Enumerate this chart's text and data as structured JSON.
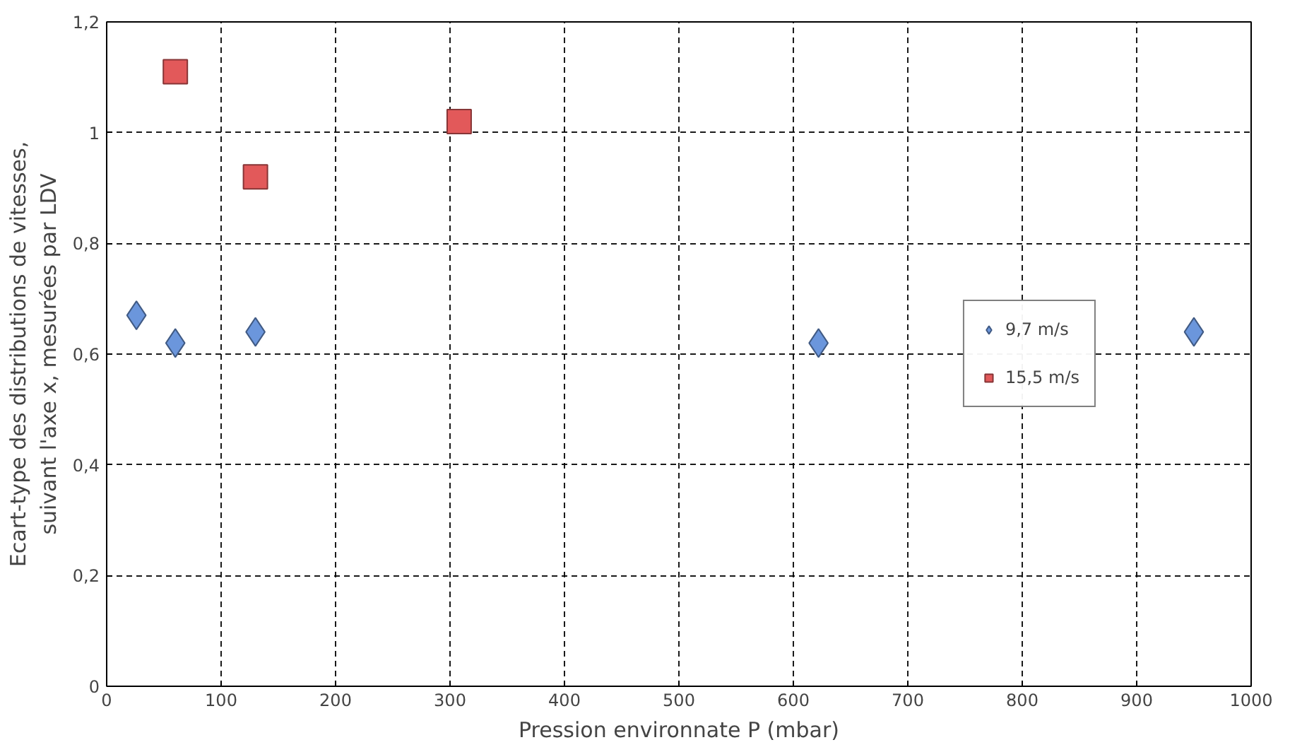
{
  "chart_data": {
    "type": "scatter",
    "xlabel": "Pression environnate P (mbar)",
    "ylabel": "Ecart-type des distributions de vitesses,\nsuivant l'axe x, mesurées par LDV",
    "series": [
      {
        "name": "9,7 m/s",
        "color": "#6b96dc",
        "marker": "diamond",
        "x": [
          26,
          60,
          130,
          622,
          950
        ],
        "values": [
          0.67,
          0.62,
          0.64,
          0.62,
          0.64
        ]
      },
      {
        "name": "15,5 m/s",
        "color": "#e2595a",
        "marker": "square",
        "x": [
          60,
          130,
          308
        ],
        "values": [
          1.11,
          0.92,
          1.02
        ]
      }
    ],
    "xlim": [
      0,
      1000
    ],
    "xticks": [
      0,
      100,
      200,
      300,
      400,
      500,
      600,
      700,
      800,
      900,
      1000
    ],
    "ylim": [
      0,
      1.2
    ],
    "yticks": [
      0,
      {
        "value": 0.2,
        "label": "0,2"
      },
      {
        "value": 0.4,
        "label": "0,4"
      },
      {
        "value": 0.6,
        "label": "0,6"
      },
      {
        "value": 0.8,
        "label": "0,8"
      },
      1,
      {
        "value": 1.2,
        "label": "1,2"
      }
    ],
    "grid": true,
    "legend": "right"
  }
}
